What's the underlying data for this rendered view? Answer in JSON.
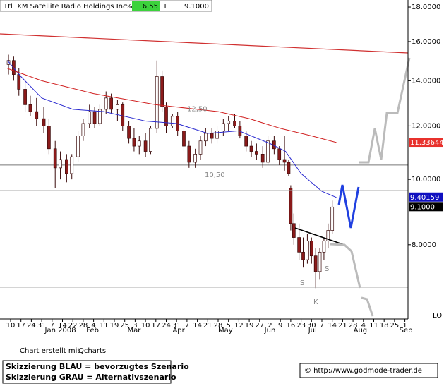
{
  "chart_data": {
    "type": "candlestick",
    "header": {
      "ttl": "Ttl",
      "name": "XM Satellite Radio Holdings Inc.",
      "pct_label": "%",
      "pct": "6.55",
      "t_label": "T",
      "last": "9.1000"
    },
    "log": true,
    "ylim": [
      6.24,
      18.44
    ],
    "yticks": [
      {
        "value": 18,
        "label": "18.0000"
      },
      {
        "value": 16,
        "label": "16.0000"
      },
      {
        "value": 14,
        "label": "14.0000"
      },
      {
        "value": 12,
        "label": "12.0000"
      },
      {
        "value": 10,
        "label": "10.0000"
      },
      {
        "value": 8,
        "label": "8.0000"
      }
    ],
    "xlim": [
      -1.02,
      38.3
    ],
    "xticks": [
      {
        "value": 0,
        "label": "10"
      },
      {
        "value": 1,
        "label": "17"
      },
      {
        "value": 2,
        "label": "24"
      },
      {
        "value": 3,
        "label": "31"
      },
      {
        "value": 4,
        "label": "7"
      },
      {
        "value": 5,
        "label": "14"
      },
      {
        "value": 6,
        "label": "22"
      },
      {
        "value": 7,
        "label": "28"
      },
      {
        "value": 8,
        "label": "4"
      },
      {
        "value": 9,
        "label": "11"
      },
      {
        "value": 10,
        "label": "19"
      },
      {
        "value": 11,
        "label": "25"
      },
      {
        "value": 12,
        "label": "3"
      },
      {
        "value": 13,
        "label": "10"
      },
      {
        "value": 14,
        "label": "17"
      },
      {
        "value": 15,
        "label": "24"
      },
      {
        "value": 16,
        "label": "31"
      },
      {
        "value": 17,
        "label": "7"
      },
      {
        "value": 18,
        "label": "14"
      },
      {
        "value": 19,
        "label": "21"
      },
      {
        "value": 20,
        "label": "28"
      },
      {
        "value": 21,
        "label": "5"
      },
      {
        "value": 22,
        "label": "12"
      },
      {
        "value": 23,
        "label": "19"
      },
      {
        "value": 24,
        "label": "27"
      },
      {
        "value": 25,
        "label": "2"
      },
      {
        "value": 26,
        "label": "9"
      },
      {
        "value": 27,
        "label": "16"
      },
      {
        "value": 28,
        "label": "23"
      },
      {
        "value": 29,
        "label": "30"
      },
      {
        "value": 30,
        "label": "7"
      },
      {
        "value": 31,
        "label": "14"
      },
      {
        "value": 32,
        "label": "21"
      },
      {
        "value": 33,
        "label": "28"
      },
      {
        "value": 34,
        "label": "4"
      },
      {
        "value": 35,
        "label": "11"
      },
      {
        "value": 36,
        "label": "18"
      },
      {
        "value": 37,
        "label": "25"
      },
      {
        "value": 38,
        "label": "1"
      }
    ],
    "month_ticks": [
      {
        "value": 4.8,
        "label": "Jan 2008"
      },
      {
        "value": 7.9,
        "label": "Feb"
      },
      {
        "value": 11.9,
        "label": "Mar"
      },
      {
        "value": 16.2,
        "label": "Apr"
      },
      {
        "value": 20.7,
        "label": "May"
      },
      {
        "value": 25.0,
        "label": "Jun"
      },
      {
        "value": 29.1,
        "label": "Jul"
      },
      {
        "value": 33.7,
        "label": "Aug"
      },
      {
        "value": 38.1,
        "label": "Sep"
      }
    ],
    "scale_label": "LO",
    "x": [
      -0.2,
      0.3,
      0.8,
      1.4,
      1.9,
      2.5,
      3.2,
      3.7,
      4.3,
      4.8,
      5.4,
      5.9,
      6.5,
      7.0,
      7.6,
      8.1,
      8.6,
      9.2,
      9.7,
      10.3,
      10.8,
      11.4,
      11.9,
      12.4,
      13.0,
      13.5,
      14.1,
      14.6,
      15.0,
      15.6,
      16.1,
      16.7,
      17.2,
      17.8,
      18.3,
      18.8,
      19.4,
      19.9,
      20.5,
      21.0,
      21.6,
      22.1,
      22.7,
      23.2,
      23.7,
      24.3,
      24.8,
      25.4,
      25.9,
      26.4,
      26.8,
      27.0,
      27.3,
      27.8,
      28.2,
      28.6,
      29.0,
      29.4,
      29.8,
      30.2,
      30.6,
      31.0
    ],
    "open": [
      14.8,
      15.0,
      14.3,
      13.6,
      12.9,
      12.6,
      12.3,
      12.0,
      11.1,
      10.4,
      10.7,
      10.2,
      10.8,
      11.6,
      12.1,
      12.6,
      12.1,
      12.7,
      13.2,
      12.7,
      12.9,
      12.0,
      11.5,
      11.2,
      11.4,
      11.0,
      11.9,
      14.2,
      12.8,
      12.0,
      12.4,
      11.8,
      11.2,
      10.6,
      10.9,
      11.4,
      11.7,
      11.5,
      11.8,
      12.1,
      12.2,
      12.0,
      11.6,
      11.2,
      11.0,
      10.9,
      10.6,
      11.4,
      11.1,
      10.7,
      10.6,
      9.7,
      8.6,
      8.2,
      7.8,
      7.6,
      8.1,
      7.7,
      7.3,
      7.8,
      8.1,
      8.4
    ],
    "high": [
      15.3,
      15.2,
      14.6,
      14.0,
      13.3,
      13.2,
      12.8,
      12.3,
      11.4,
      11.0,
      10.9,
      10.9,
      11.8,
      12.3,
      12.9,
      12.8,
      12.9,
      13.5,
      13.4,
      13.1,
      13.0,
      12.2,
      11.9,
      11.6,
      11.7,
      12.0,
      15.0,
      14.5,
      13.0,
      12.5,
      12.6,
      12.0,
      11.4,
      11.1,
      11.6,
      11.9,
      11.9,
      12.0,
      12.3,
      12.4,
      12.5,
      12.2,
      11.8,
      11.4,
      11.3,
      11.2,
      11.6,
      11.6,
      11.2,
      11.6,
      10.7,
      9.8,
      8.9,
      8.6,
      8.2,
      8.3,
      8.2,
      7.9,
      7.9,
      8.2,
      8.6,
      9.3
    ],
    "low": [
      14.3,
      14.0,
      13.3,
      12.6,
      12.4,
      12.0,
      11.7,
      10.9,
      9.7,
      10.0,
      9.9,
      10.0,
      10.6,
      11.4,
      11.9,
      11.9,
      12.0,
      12.5,
      12.5,
      12.2,
      11.8,
      11.3,
      11.0,
      10.9,
      10.8,
      10.9,
      11.7,
      12.6,
      11.7,
      11.9,
      11.6,
      11.0,
      10.4,
      10.4,
      10.7,
      11.2,
      11.3,
      11.3,
      11.6,
      11.8,
      11.9,
      11.5,
      11.0,
      10.8,
      10.7,
      10.4,
      10.5,
      10.9,
      10.5,
      10.3,
      10.1,
      8.4,
      8.0,
      7.6,
      7.4,
      7.5,
      7.5,
      6.9,
      7.1,
      7.6,
      7.9,
      8.3
    ],
    "close": [
      15.0,
      14.3,
      13.6,
      12.9,
      12.6,
      12.3,
      12.0,
      11.1,
      10.4,
      10.7,
      10.2,
      10.8,
      11.6,
      12.1,
      12.6,
      12.1,
      12.7,
      13.2,
      12.7,
      12.9,
      12.0,
      11.5,
      11.2,
      11.4,
      11.0,
      11.9,
      14.2,
      12.8,
      12.0,
      12.4,
      11.8,
      11.2,
      10.6,
      10.9,
      11.4,
      11.7,
      11.5,
      11.8,
      12.1,
      12.2,
      12.0,
      11.6,
      11.2,
      11.0,
      10.9,
      10.6,
      11.4,
      11.1,
      10.7,
      10.6,
      10.2,
      8.6,
      8.2,
      7.8,
      7.6,
      8.1,
      7.7,
      7.3,
      7.8,
      8.1,
      8.4,
      9.1
    ],
    "up_color": "#ffffff",
    "down_color": "#8b1a1a",
    "wick_color": "#3a0a0a",
    "lines": [
      {
        "color": "#2b2bd0",
        "x": [
          -0.3,
          1,
          3,
          6,
          9,
          13,
          16,
          19,
          22,
          25,
          26.5,
          28,
          30,
          31.4
        ],
        "values": [
          15.0,
          14.2,
          13.2,
          12.7,
          12.6,
          12.2,
          12.1,
          11.7,
          11.8,
          11.3,
          11.0,
          10.2,
          9.6,
          9.4
        ]
      },
      {
        "color": "#d02020",
        "x": [
          -0.3,
          3,
          8,
          14,
          20,
          23,
          26,
          29,
          31.4
        ],
        "values": [
          14.6,
          14.0,
          13.4,
          12.9,
          12.6,
          12.3,
          11.9,
          11.6,
          11.34
        ]
      }
    ],
    "levels": [
      {
        "value": 12.5,
        "label": "12,50"
      },
      {
        "value": 10.5,
        "label": "10,50"
      }
    ],
    "price_markers": [
      {
        "value": 11.33644,
        "label": "11.33644",
        "color": "#e8312c"
      },
      {
        "value": 9.40159,
        "label": "9.40159",
        "color": "#1010c0"
      },
      {
        "value": 9.1,
        "label": "9.1000",
        "color": "#000000"
      }
    ],
    "annotations": [
      "S",
      "S",
      "K"
    ],
    "footer": {
      "credit": "Chart erstellt mit",
      "tool": "Qcharts",
      "legend_blue": "Skizzierung BLAU = bevorzugtes Szenario",
      "legend_gray": "Skizzierung GRAU = Alternativszenario",
      "site": "© http://www.godmode-trader.de"
    }
  }
}
